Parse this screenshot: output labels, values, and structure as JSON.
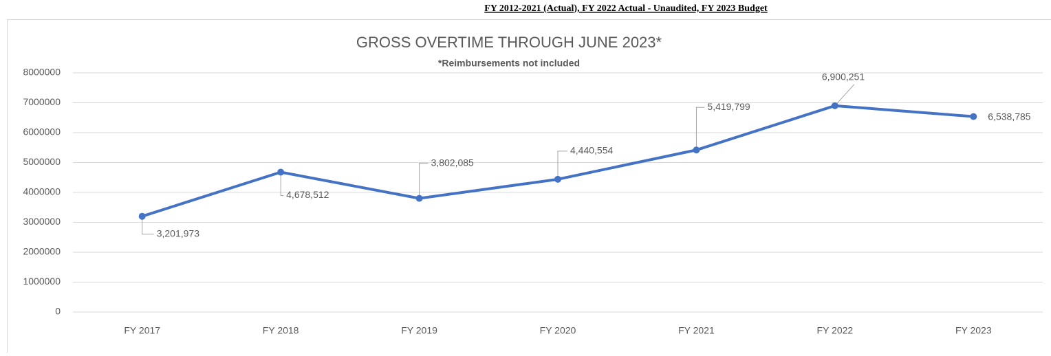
{
  "header": "FY 2012-2021 (Actual), FY 2022 Actual - Unaudited, FY 2023 Budget",
  "chart_data": {
    "type": "line",
    "title": "GROSS OVERTIME THROUGH JUNE 2023*",
    "subtitle": "*Reimbursements not included",
    "categories": [
      "FY 2017",
      "FY 2018",
      "FY 2019",
      "FY 2020",
      "FY 2021",
      "FY 2022",
      "FY 2023"
    ],
    "values": [
      3201973,
      4678512,
      3802085,
      4440554,
      5419799,
      6900251,
      6538785
    ],
    "value_labels": [
      "3,201,973",
      "4,678,512",
      "3,802,085",
      "4,440,554",
      "5,419,799",
      "6,900,251",
      "6,538,785"
    ],
    "color": "#4472c4",
    "ylim": [
      0,
      8000000
    ],
    "yticks": [
      0,
      1000000,
      2000000,
      3000000,
      4000000,
      5000000,
      6000000,
      7000000,
      8000000
    ],
    "grid": true
  }
}
